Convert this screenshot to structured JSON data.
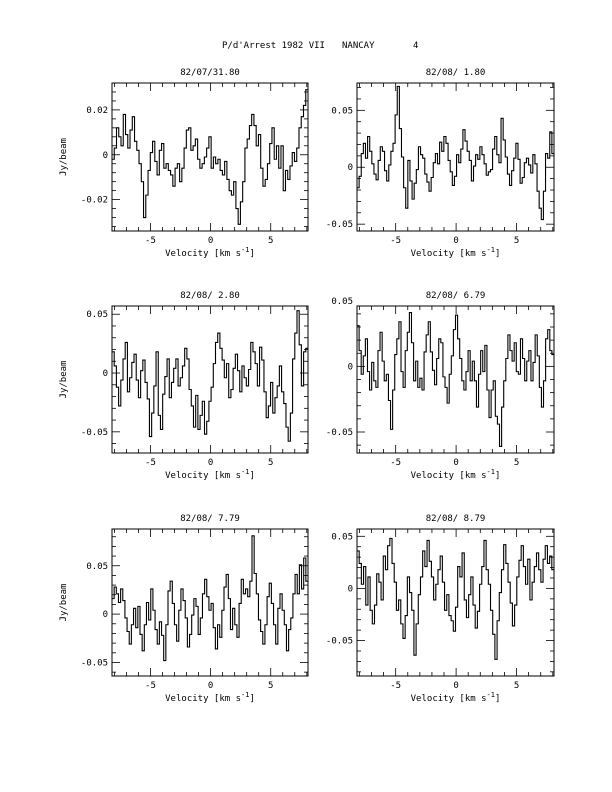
{
  "header": {
    "title": "P/d'Arrest 1982 VII",
    "observatory": "NANCAY",
    "page_number": "4"
  },
  "chart_data": [
    {
      "type": "line",
      "title": "82/07/31.80",
      "xlabel": "Velocity [km s",
      "xlabel_exp": "-1",
      "xlabel_end": "]",
      "ylabel": "Jy/beam",
      "xlim": [
        -8.2,
        8.1
      ],
      "ylim": [
        -0.034,
        0.032
      ],
      "xticks": [
        -5,
        0,
        5
      ],
      "yticks": [
        -0.02,
        0,
        0.02
      ],
      "ytick_labels": [
        "-0.02",
        "0",
        "0.02"
      ],
      "y": [
        -0.002,
        0.003,
        0.012,
        0.008,
        0.004,
        0.018,
        0.009,
        0.003,
        0.011,
        0.017,
        0.006,
        0.002,
        -0.004,
        -0.012,
        -0.028,
        -0.018,
        -0.007,
        0.001,
        0.006,
        -0.003,
        -0.009,
        0.002,
        0.005,
        -0.006,
        -0.004,
        -0.007,
        -0.009,
        -0.014,
        -0.006,
        -0.004,
        -0.012,
        -0.006,
        0.003,
        0.011,
        0.012,
        0.002,
        0.004,
        0.007,
        -0.002,
        -0.006,
        -0.004,
        -0.001,
        0.003,
        0.008,
        -0.006,
        -0.001,
        -0.004,
        -0.002,
        -0.007,
        -0.009,
        -0.003,
        -0.011,
        -0.016,
        -0.018,
        -0.012,
        -0.024,
        -0.031,
        -0.021,
        -0.012,
        0.003,
        0.007,
        0.013,
        0.018,
        0.013,
        0.004,
        0.009,
        -0.006,
        -0.014,
        -0.011,
        -0.004,
        0.005,
        0.012,
        -0.002,
        0.004,
        -0.006,
        0.004,
        -0.016,
        -0.007,
        -0.011,
        -0.005,
        0.001,
        -0.003,
        0.003,
        0.012,
        0.017,
        0.022,
        0.029
      ]
    },
    {
      "type": "line",
      "title": "82/08/ 1.80",
      "xlabel": "Velocity [km s",
      "xlabel_exp": "-1",
      "xlabel_end": "]",
      "ylabel": "",
      "xlim": [
        -8.2,
        8.1
      ],
      "ylim": [
        -0.056,
        0.074
      ],
      "xticks": [
        -5,
        0,
        5
      ],
      "yticks": [
        -0.05,
        0,
        0.05
      ],
      "ytick_labels": [
        "-0.05",
        "0",
        "0.05"
      ],
      "y": [
        -0.018,
        -0.008,
        0.012,
        0.021,
        0.008,
        0.027,
        0.014,
        0.003,
        -0.006,
        -0.011,
        0.006,
        0.018,
        0.014,
        -0.003,
        -0.012,
        0.002,
        0.014,
        0.021,
        0.046,
        0.071,
        0.034,
        0.009,
        -0.018,
        -0.036,
        0.006,
        -0.012,
        -0.028,
        -0.014,
        -0.002,
        0.018,
        0.011,
        0.008,
        -0.006,
        -0.013,
        -0.021,
        -0.009,
        0.004,
        0.012,
        0.003,
        0.022,
        0.014,
        0.027,
        0.021,
        0.006,
        -0.004,
        -0.016,
        -0.008,
        0.011,
        0.004,
        0.016,
        0.033,
        0.023,
        0.014,
        0.006,
        -0.012,
        0.001,
        0.011,
        0.007,
        0.018,
        0.011,
        0.003,
        -0.007,
        -0.004,
        -0.002,
        0.016,
        0.027,
        0.011,
        0.004,
        0.043,
        0.024,
        0.009,
        -0.006,
        -0.016,
        -0.003,
        0.008,
        0.021,
        0.007,
        -0.014,
        -0.009,
        0.004,
        0.008,
        0.002,
        -0.005,
        0.011,
        0.003,
        -0.021,
        -0.036,
        -0.046,
        -0.021,
        0.012,
        0.008,
        0.031,
        0.012
      ]
    },
    {
      "type": "line",
      "title": "82/08/ 2.80",
      "xlabel": "Velocity [km s",
      "xlabel_exp": "-1",
      "xlabel_end": "]",
      "ylabel": "Jy/beam",
      "xlim": [
        -8.2,
        8.1
      ],
      "ylim": [
        -0.068,
        0.057
      ],
      "xticks": [
        -5,
        0,
        5
      ],
      "yticks": [
        -0.05,
        0,
        0.05
      ],
      "ytick_labels": [
        "-0.05",
        "0",
        "0.05"
      ],
      "y": [
        0.018,
        0.006,
        -0.012,
        -0.028,
        -0.006,
        0.012,
        0.026,
        -0.016,
        -0.004,
        0.009,
        0.016,
        -0.006,
        -0.021,
        0.002,
        0.011,
        -0.008,
        -0.022,
        -0.054,
        -0.034,
        -0.011,
        0.018,
        -0.036,
        -0.048,
        -0.018,
        -0.003,
        0.012,
        -0.021,
        -0.008,
        0.004,
        0.012,
        -0.011,
        -0.004,
        0.006,
        0.021,
        0.012,
        -0.014,
        -0.028,
        -0.046,
        -0.019,
        -0.048,
        -0.036,
        -0.024,
        -0.052,
        -0.041,
        -0.024,
        -0.012,
        0.008,
        0.026,
        0.034,
        0.021,
        0.011,
        -0.004,
        0.008,
        -0.021,
        -0.014,
        0.004,
        0.016,
        0.002,
        -0.016,
        0.006,
        -0.004,
        -0.011,
        0.003,
        0.026,
        0.018,
        0.008,
        -0.011,
        0.022,
        0.011,
        -0.016,
        -0.038,
        -0.028,
        -0.008,
        -0.034,
        -0.021,
        -0.011,
        0.006,
        -0.016,
        -0.026,
        -0.046,
        -0.058,
        -0.034,
        0.012,
        0.034,
        0.053,
        0.024,
        -0.011,
        0.018,
        0.021
      ]
    },
    {
      "type": "line",
      "title": "82/08/ 6.79",
      "xlabel": "Velocity [km s",
      "xlabel_exp": "-1",
      "xlabel_end": "]",
      "ylabel": "",
      "xlim": [
        -8.2,
        8.1
      ],
      "ylim": [
        -0.066,
        0.046
      ],
      "xticks": [
        -5,
        0,
        5
      ],
      "yticks": [
        -0.05,
        0,
        0.05
      ],
      "ytick_labels": [
        "-0.05",
        "0",
        "0.05"
      ],
      "y": [
        0.031,
        0.012,
        -0.006,
        0.008,
        0.021,
        -0.004,
        -0.018,
        0.003,
        -0.011,
        -0.016,
        0.012,
        0.026,
        0.004,
        -0.011,
        -0.006,
        -0.026,
        -0.048,
        -0.018,
        0.009,
        0.021,
        0.034,
        -0.004,
        -0.016,
        0.012,
        0.026,
        0.041,
        0.018,
        -0.011,
        0.004,
        -0.016,
        -0.009,
        -0.018,
        0.011,
        0.024,
        0.034,
        0.011,
        -0.003,
        -0.014,
        0.006,
        0.021,
        0.018,
        -0.008,
        -0.016,
        -0.028,
        -0.006,
        0.008,
        0.028,
        0.039,
        0.021,
        0.006,
        -0.011,
        -0.018,
        -0.004,
        0.012,
        -0.011,
        0.004,
        -0.011,
        -0.031,
        -0.006,
        0.012,
        -0.004,
        0.016,
        -0.018,
        -0.039,
        -0.018,
        -0.011,
        -0.038,
        -0.044,
        -0.061,
        -0.031,
        -0.011,
        0.006,
        0.024,
        0.012,
        0.004,
        0.018,
        -0.004,
        -0.006,
        0.021,
        0.006,
        -0.011,
        0.004,
        0.012,
        -0.011,
        0.003,
        0.024,
        0.008,
        -0.016,
        -0.031,
        -0.011,
        0.021,
        0.028,
        0.012,
        0.009
      ]
    },
    {
      "type": "line",
      "title": "82/08/ 7.79",
      "xlabel": "Velocity [km s",
      "xlabel_exp": "-1",
      "xlabel_end": "]",
      "ylabel": "Jy/beam",
      "xlim": [
        -8.2,
        8.1
      ],
      "ylim": [
        -0.064,
        0.088
      ],
      "xticks": [
        -5,
        0,
        5
      ],
      "yticks": [
        -0.05,
        0,
        0.05
      ],
      "ytick_labels": [
        "-0.05",
        "0",
        "0.05"
      ],
      "y": [
        0.016,
        0.028,
        0.021,
        0.012,
        0.026,
        0.014,
        -0.004,
        -0.018,
        -0.031,
        -0.011,
        0.006,
        -0.014,
        0.008,
        -0.021,
        -0.038,
        -0.011,
        0.012,
        -0.006,
        0.026,
        0.004,
        -0.016,
        -0.031,
        -0.008,
        -0.022,
        -0.048,
        -0.011,
        0.024,
        0.034,
        0.011,
        -0.011,
        -0.028,
        0.004,
        0.026,
        0.014,
        -0.004,
        -0.034,
        -0.021,
        -0.001,
        0.016,
        0.008,
        -0.021,
        -0.004,
        0.021,
        0.036,
        0.018,
        0.004,
        0.011,
        -0.014,
        -0.036,
        -0.011,
        -0.024,
        0.004,
        0.028,
        0.041,
        0.016,
        -0.016,
        0.006,
        -0.011,
        -0.024,
        0.011,
        0.036,
        0.021,
        0.026,
        0.018,
        0.034,
        0.081,
        0.042,
        0.021,
        -0.006,
        -0.018,
        -0.031,
        -0.011,
        0.018,
        0.032,
        0.011,
        -0.011,
        -0.031,
        0.006,
        0.021,
        0.004,
        -0.011,
        -0.038,
        -0.016,
        -0.004,
        0.021,
        0.041,
        0.021,
        0.051,
        0.026,
        0.058,
        0.034
      ]
    },
    {
      "type": "line",
      "title": "82/08/ 8.79",
      "xlabel": "Velocity [km s",
      "xlabel_exp": "-1",
      "xlabel_end": "]",
      "ylabel": "",
      "xlim": [
        -8.2,
        8.1
      ],
      "ylim": [
        -0.084,
        0.057
      ],
      "xticks": [
        -5,
        0,
        5
      ],
      "yticks": [
        -0.05,
        0,
        0.05
      ],
      "ytick_labels": [
        "-0.05",
        "0",
        "0.05"
      ],
      "y": [
        0.036,
        0.024,
        0.004,
        0.021,
        -0.016,
        0.011,
        -0.021,
        -0.034,
        -0.016,
        0.014,
        0.006,
        -0.011,
        0.031,
        0.018,
        0.041,
        0.048,
        0.024,
        0.006,
        -0.021,
        -0.011,
        -0.034,
        -0.048,
        -0.026,
        0.011,
        -0.004,
        -0.021,
        -0.064,
        -0.034,
        -0.006,
        0.011,
        0.036,
        0.021,
        0.046,
        0.026,
        0.011,
        -0.011,
        0.004,
        0.018,
        0.031,
        0.006,
        -0.021,
        -0.006,
        -0.026,
        -0.031,
        -0.041,
        -0.018,
        0.021,
        0.011,
        0.034,
        -0.011,
        -0.028,
        -0.006,
        0.011,
        -0.016,
        -0.038,
        -0.022,
        0.004,
        0.021,
        0.046,
        0.018,
        0.004,
        -0.021,
        -0.044,
        -0.068,
        -0.031,
        -0.004,
        0.018,
        0.042,
        0.024,
        0.006,
        -0.014,
        -0.036,
        -0.016,
        0.011,
        0.027,
        0.041,
        0.021,
        0.004,
        0.028,
        -0.011,
        0.006,
        0.021,
        0.034,
        0.018,
        0.006,
        0.028,
        0.041,
        0.024,
        0.031,
        0.018
      ]
    }
  ]
}
